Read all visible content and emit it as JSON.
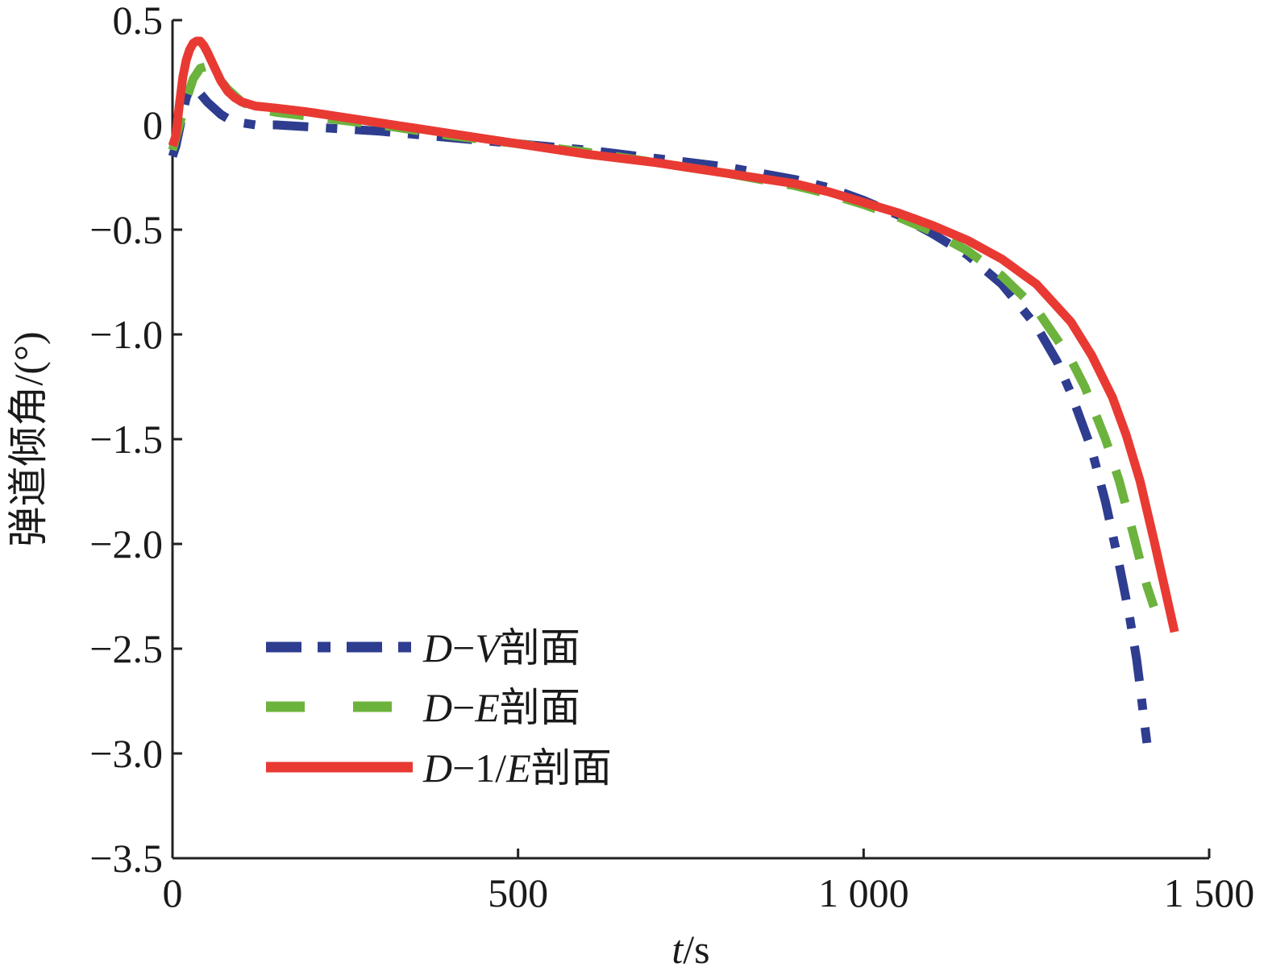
{
  "chart_data": {
    "type": "line",
    "title": "",
    "xlabel": {
      "italic": "t",
      "rest": "/s"
    },
    "ylabel": "弹道倾角/(°)",
    "xlim": [
      0,
      1500
    ],
    "ylim": [
      -3.5,
      0.5
    ],
    "xticks": [
      {
        "value": 0,
        "label": "0"
      },
      {
        "value": 500,
        "label": "500"
      },
      {
        "value": 1000,
        "label": "1 000"
      },
      {
        "value": 1500,
        "label": "1 500"
      }
    ],
    "yticks": [
      {
        "value": 0.5,
        "label": "0.5"
      },
      {
        "value": 0,
        "label": "0"
      },
      {
        "value": -0.5,
        "label": "−0.5"
      },
      {
        "value": -1.0,
        "label": "−1.0"
      },
      {
        "value": -1.5,
        "label": "−1.5"
      },
      {
        "value": -2.0,
        "label": "−2.0"
      },
      {
        "value": -2.5,
        "label": "−2.5"
      },
      {
        "value": -3.0,
        "label": "−3.0"
      },
      {
        "value": -3.5,
        "label": "−3.5"
      }
    ],
    "grid": false,
    "legend_position": "bottom-left",
    "series": [
      {
        "name": "D−V剖面",
        "legend": {
          "italic": "D",
          "mid": "−",
          "italic2": "V",
          "suffix": "剖面"
        },
        "color": "#2e3d8f",
        "style": "dashdot",
        "x": [
          0,
          5,
          10,
          15,
          20,
          25,
          30,
          40,
          50,
          60,
          70,
          80,
          100,
          120,
          150,
          200,
          300,
          400,
          500,
          600,
          700,
          800,
          900,
          950,
          1000,
          1050,
          1100,
          1150,
          1200,
          1250,
          1280,
          1300,
          1330,
          1350,
          1370,
          1385,
          1395,
          1400,
          1405,
          1410
        ],
        "y": [
          -0.15,
          -0.1,
          -0.02,
          0.06,
          0.13,
          0.17,
          0.17,
          0.15,
          0.11,
          0.08,
          0.05,
          0.03,
          0.01,
          0.0,
          0.0,
          -0.01,
          -0.03,
          -0.06,
          -0.09,
          -0.12,
          -0.16,
          -0.2,
          -0.26,
          -0.3,
          -0.36,
          -0.43,
          -0.52,
          -0.62,
          -0.76,
          -0.96,
          -1.13,
          -1.28,
          -1.55,
          -1.8,
          -2.1,
          -2.35,
          -2.55,
          -2.68,
          -2.82,
          -2.95
        ]
      },
      {
        "name": "D−E剖面",
        "legend": {
          "italic": "D",
          "mid": "−",
          "italic2": "E",
          "suffix": "剖面"
        },
        "color": "#6cb33e",
        "style": "dashed",
        "x": [
          0,
          10,
          20,
          30,
          40,
          50,
          60,
          70,
          80,
          90,
          100,
          120,
          150,
          200,
          300,
          400,
          500,
          600,
          700,
          800,
          900,
          950,
          1000,
          1050,
          1100,
          1150,
          1200,
          1250,
          1300,
          1320,
          1350,
          1370,
          1390,
          1400,
          1410,
          1420
        ],
        "y": [
          -0.12,
          0.0,
          0.12,
          0.22,
          0.27,
          0.28,
          0.25,
          0.21,
          0.17,
          0.14,
          0.11,
          0.08,
          0.06,
          0.04,
          0.0,
          -0.05,
          -0.09,
          -0.13,
          -0.18,
          -0.23,
          -0.29,
          -0.33,
          -0.38,
          -0.44,
          -0.51,
          -0.6,
          -0.72,
          -0.88,
          -1.12,
          -1.25,
          -1.5,
          -1.7,
          -1.95,
          -2.08,
          -2.2,
          -2.3
        ]
      },
      {
        "name": "D−1/E剖面",
        "legend": {
          "italic": "D",
          "mid": "−1/",
          "italic2": "E",
          "suffix": "剖面"
        },
        "color": "#e83a33",
        "style": "solid",
        "x": [
          0,
          5,
          10,
          15,
          20,
          25,
          30,
          35,
          40,
          45,
          50,
          60,
          70,
          80,
          90,
          100,
          120,
          150,
          200,
          300,
          400,
          500,
          600,
          700,
          800,
          900,
          950,
          1000,
          1050,
          1100,
          1150,
          1200,
          1250,
          1300,
          1330,
          1360,
          1380,
          1400,
          1420,
          1435,
          1450
        ],
        "y": [
          -0.1,
          -0.05,
          0.1,
          0.23,
          0.31,
          0.36,
          0.39,
          0.4,
          0.4,
          0.38,
          0.35,
          0.28,
          0.21,
          0.16,
          0.13,
          0.11,
          0.09,
          0.08,
          0.06,
          0.01,
          -0.04,
          -0.09,
          -0.14,
          -0.18,
          -0.23,
          -0.28,
          -0.32,
          -0.37,
          -0.42,
          -0.48,
          -0.55,
          -0.64,
          -0.76,
          -0.94,
          -1.1,
          -1.3,
          -1.48,
          -1.7,
          -1.98,
          -2.2,
          -2.42
        ]
      }
    ]
  }
}
